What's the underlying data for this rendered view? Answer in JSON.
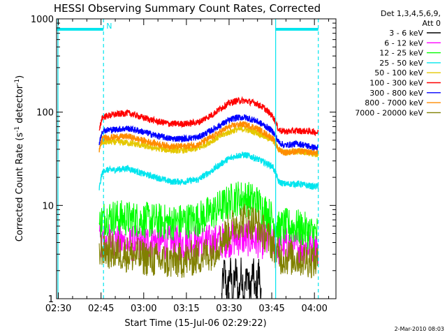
{
  "chart_data": {
    "type": "line",
    "title": "HESSI Observing Summary Count Rates, Corrected",
    "xlabel": "Start Time (15-Jul-06 02:29:22)",
    "ylabel_prefix": "Corrected Count Rate (s",
    "ylabel_sup1": "-1",
    "ylabel_mid": " detector",
    "ylabel_sup2": "-1",
    "ylabel_suffix": ")",
    "x_ticks": [
      "02:30",
      "02:45",
      "03:00",
      "03:15",
      "03:30",
      "03:45",
      "04:00"
    ],
    "x_tick_minutes": [
      0.633,
      15.633,
      30.633,
      45.633,
      60.633,
      75.633,
      90.633
    ],
    "xlim_minutes": [
      0,
      98.2
    ],
    "yscale": "log",
    "ylim": [
      1,
      1000
    ],
    "y_ticks": [
      "1",
      "10",
      "100",
      "1000"
    ],
    "y_tick_values": [
      1,
      10,
      100,
      1000
    ],
    "legend_header": [
      "Det 1,3,4,5,6,9,",
      "Att 0"
    ],
    "legend_placement": "right",
    "markers": {
      "night_bars": [
        [
          0,
          16.5
        ],
        [
          77,
          92
        ]
      ],
      "saa_lines": [
        0.5,
        16.5,
        77,
        92
      ],
      "night_label": "N",
      "marker_color": "#00e5ee"
    },
    "series": [
      {
        "name": "3 - 6 keV",
        "color": "#000000",
        "x": [
          58,
          59,
          60,
          61,
          62,
          63,
          64,
          65,
          66,
          67,
          68,
          69,
          70,
          71,
          72
        ],
        "y": [
          1,
          2,
          1,
          2,
          1,
          2,
          1,
          2,
          1,
          2,
          1,
          2,
          1,
          2,
          1
        ]
      },
      {
        "name": "6 - 12 keV",
        "color": "#ff00ff",
        "x": [
          15,
          16,
          17,
          20,
          25,
          30,
          35,
          40,
          45,
          50,
          55,
          60,
          65,
          70,
          75,
          78,
          80,
          85,
          90,
          92
        ],
        "y": [
          4,
          4.5,
          4,
          4.2,
          3.8,
          4,
          4.2,
          3.9,
          4,
          4.1,
          4,
          4.3,
          4.5,
          4.3,
          4,
          3.5,
          3.8,
          3.6,
          3.7,
          3.6
        ]
      },
      {
        "name": "12 - 25 keV",
        "color": "#00ff00",
        "x": [
          15,
          16,
          17,
          20,
          25,
          30,
          35,
          40,
          45,
          50,
          55,
          60,
          63,
          66,
          70,
          73,
          76,
          78,
          80,
          85,
          90,
          92
        ],
        "y": [
          6,
          7,
          7.5,
          7.5,
          7.2,
          7,
          6.8,
          6.5,
          6.8,
          7.2,
          8.5,
          10.5,
          12,
          12,
          11,
          9,
          7,
          5.5,
          6,
          5.8,
          5,
          5
        ]
      },
      {
        "name": "25 - 50 keV",
        "color": "#00e5ee",
        "x": [
          15,
          16,
          17,
          20,
          25,
          30,
          35,
          40,
          45,
          50,
          55,
          60,
          63,
          66,
          70,
          73,
          76,
          78,
          80,
          85,
          90,
          92
        ],
        "y": [
          15,
          22,
          24,
          24,
          25,
          22,
          20,
          18,
          18,
          19,
          24,
          31,
          34,
          35,
          32,
          29,
          26,
          18,
          17,
          17,
          16,
          16
        ]
      },
      {
        "name": "50 - 100 keV",
        "color": "#e5c800",
        "x": [
          15,
          16,
          17,
          20,
          25,
          30,
          35,
          40,
          45,
          50,
          55,
          60,
          63,
          66,
          70,
          73,
          76,
          78,
          80,
          85,
          90,
          92
        ],
        "y": [
          40,
          47,
          48,
          48,
          47,
          44,
          41,
          39,
          39,
          41,
          50,
          60,
          65,
          66,
          61,
          55,
          50,
          40,
          37,
          38,
          36,
          35
        ]
      },
      {
        "name": "100 - 300 keV",
        "color": "#ff0000",
        "x": [
          15,
          16,
          17,
          20,
          25,
          30,
          35,
          40,
          45,
          50,
          55,
          60,
          63,
          66,
          70,
          73,
          76,
          78,
          80,
          85,
          90,
          92
        ],
        "y": [
          60,
          88,
          90,
          94,
          98,
          88,
          80,
          75,
          75,
          78,
          95,
          122,
          132,
          133,
          125,
          110,
          90,
          65,
          62,
          63,
          62,
          60
        ]
      },
      {
        "name": "300 - 800 keV",
        "color": "#0000ff",
        "x": [
          15,
          16,
          17,
          20,
          25,
          30,
          35,
          40,
          45,
          50,
          55,
          60,
          63,
          66,
          70,
          73,
          76,
          78,
          80,
          85,
          90,
          92
        ],
        "y": [
          45,
          63,
          64,
          65,
          67,
          62,
          56,
          52,
          52,
          54,
          65,
          80,
          87,
          88,
          81,
          72,
          62,
          48,
          44,
          46,
          42,
          41
        ]
      },
      {
        "name": "800 - 7000 keV",
        "color": "#ff8c00",
        "x": [
          15,
          16,
          17,
          20,
          25,
          30,
          35,
          40,
          45,
          50,
          55,
          60,
          63,
          66,
          70,
          73,
          76,
          78,
          80,
          85,
          90,
          92
        ],
        "y": [
          38,
          52,
          53,
          54,
          55,
          50,
          46,
          43,
          43,
          45,
          55,
          68,
          73,
          74,
          68,
          60,
          52,
          40,
          37,
          38,
          37,
          36
        ]
      },
      {
        "name": "7000 - 20000 keV",
        "color": "#808000",
        "x": [
          15,
          16,
          17,
          20,
          25,
          30,
          35,
          40,
          45,
          50,
          55,
          60,
          63,
          66,
          70,
          73,
          76,
          78,
          80,
          85,
          90,
          92
        ],
        "y": [
          3,
          3.5,
          3.3,
          3.2,
          3,
          2.8,
          2.6,
          2.5,
          2.6,
          2.8,
          3.2,
          5,
          6.5,
          7,
          6.5,
          5,
          3.8,
          2.8,
          2.8,
          2.7,
          2.6,
          2.5
        ]
      }
    ],
    "footer_date": "2-Mar-2010 08:03"
  }
}
